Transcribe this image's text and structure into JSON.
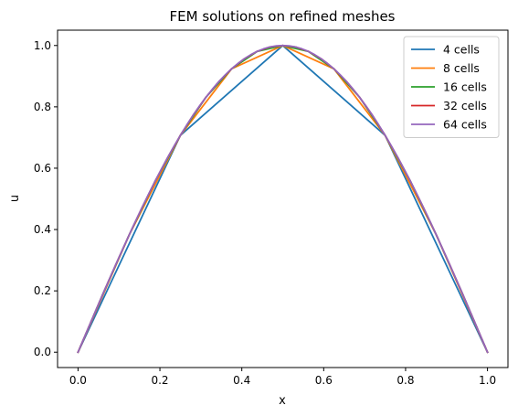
{
  "chart_data": {
    "type": "line",
    "title": "FEM solutions on refined meshes",
    "xlabel": "x",
    "ylabel": "u",
    "xlim": [
      -0.05,
      1.05
    ],
    "ylim": [
      -0.05,
      1.05
    ],
    "xticks": [
      0.0,
      0.2,
      0.4,
      0.6,
      0.8,
      1.0
    ],
    "xtick_labels": [
      "0.0",
      "0.2",
      "0.4",
      "0.6",
      "0.8",
      "1.0"
    ],
    "yticks": [
      0.0,
      0.2,
      0.4,
      0.6,
      0.8,
      1.0
    ],
    "ytick_labels": [
      "0.0",
      "0.2",
      "0.4",
      "0.6",
      "0.8",
      "1.0"
    ],
    "grid": false,
    "legend_position": "top-right",
    "series": [
      {
        "name": "4 cells",
        "color": "#1f77b4",
        "x": [
          0,
          0.25,
          0.5,
          0.75,
          1
        ],
        "y": [
          0,
          0.7071,
          1,
          0.7071,
          0
        ]
      },
      {
        "name": "8 cells",
        "color": "#ff7f0e",
        "x": [
          0,
          0.125,
          0.25,
          0.375,
          0.5,
          0.625,
          0.75,
          0.875,
          1
        ],
        "y": [
          0,
          0.3827,
          0.7071,
          0.9239,
          1,
          0.9239,
          0.7071,
          0.3827,
          0
        ]
      },
      {
        "name": "16 cells",
        "color": "#2ca02c",
        "x": [
          0,
          0.0625,
          0.125,
          0.1875,
          0.25,
          0.3125,
          0.375,
          0.4375,
          0.5,
          0.5625,
          0.625,
          0.6875,
          0.75,
          0.8125,
          0.875,
          0.9375,
          1
        ],
        "y": [
          0,
          0.1951,
          0.3827,
          0.5556,
          0.7071,
          0.8315,
          0.9239,
          0.9808,
          1,
          0.9808,
          0.9239,
          0.8315,
          0.7071,
          0.5556,
          0.3827,
          0.1951,
          0
        ]
      },
      {
        "name": "32 cells",
        "color": "#d62728",
        "x": [
          0,
          0.03125,
          0.0625,
          0.09375,
          0.125,
          0.15625,
          0.1875,
          0.21875,
          0.25,
          0.28125,
          0.3125,
          0.34375,
          0.375,
          0.40625,
          0.4375,
          0.46875,
          0.5,
          0.53125,
          0.5625,
          0.59375,
          0.625,
          0.65625,
          0.6875,
          0.71875,
          0.75,
          0.78125,
          0.8125,
          0.84375,
          0.875,
          0.90625,
          0.9375,
          0.96875,
          1
        ],
        "y": [
          0,
          0.098,
          0.1951,
          0.2903,
          0.3827,
          0.4714,
          0.5556,
          0.6344,
          0.7071,
          0.773,
          0.8315,
          0.8819,
          0.9239,
          0.9569,
          0.9808,
          0.9952,
          1,
          0.9952,
          0.9808,
          0.9569,
          0.9239,
          0.8819,
          0.8315,
          0.773,
          0.7071,
          0.6344,
          0.5556,
          0.4714,
          0.3827,
          0.2903,
          0.1951,
          0.098,
          0
        ]
      },
      {
        "name": "64 cells",
        "color": "#9467bd",
        "x": [
          0,
          0.015625,
          0.03125,
          0.046875,
          0.0625,
          0.078125,
          0.09375,
          0.109375,
          0.125,
          0.140625,
          0.15625,
          0.171875,
          0.1875,
          0.203125,
          0.21875,
          0.234375,
          0.25,
          0.265625,
          0.28125,
          0.296875,
          0.3125,
          0.328125,
          0.34375,
          0.359375,
          0.375,
          0.390625,
          0.40625,
          0.421875,
          0.4375,
          0.453125,
          0.46875,
          0.484375,
          0.5,
          0.515625,
          0.53125,
          0.546875,
          0.5625,
          0.578125,
          0.59375,
          0.609375,
          0.625,
          0.640625,
          0.65625,
          0.671875,
          0.6875,
          0.703125,
          0.71875,
          0.734375,
          0.75,
          0.765625,
          0.78125,
          0.796875,
          0.8125,
          0.828125,
          0.84375,
          0.859375,
          0.875,
          0.890625,
          0.90625,
          0.921875,
          0.9375,
          0.953125,
          0.96875,
          0.984375,
          1
        ],
        "y": [
          0,
          0.0491,
          0.098,
          0.1467,
          0.1951,
          0.243,
          0.2903,
          0.3369,
          0.3827,
          0.4276,
          0.4714,
          0.5141,
          0.5556,
          0.5957,
          0.6344,
          0.6716,
          0.7071,
          0.741,
          0.773,
          0.8032,
          0.8315,
          0.8577,
          0.8819,
          0.904,
          0.9239,
          0.9415,
          0.9569,
          0.97,
          0.9808,
          0.9892,
          0.9952,
          0.9988,
          1,
          0.9988,
          0.9952,
          0.9892,
          0.9808,
          0.97,
          0.9569,
          0.9415,
          0.9239,
          0.904,
          0.8819,
          0.8577,
          0.8315,
          0.8032,
          0.773,
          0.741,
          0.7071,
          0.6716,
          0.6344,
          0.5957,
          0.5556,
          0.5141,
          0.4714,
          0.4276,
          0.3827,
          0.3369,
          0.2903,
          0.243,
          0.1951,
          0.1467,
          0.098,
          0.0491,
          0
        ]
      }
    ]
  }
}
